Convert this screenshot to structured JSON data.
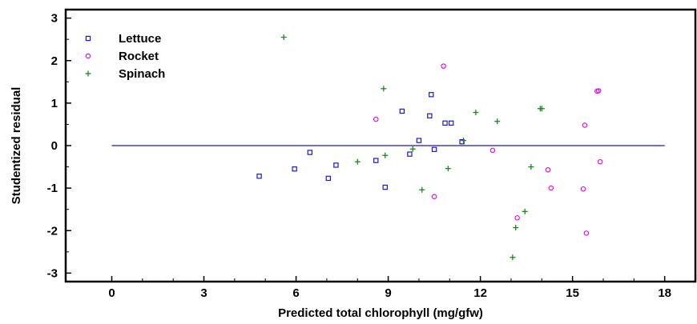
{
  "chart_data": {
    "type": "scatter",
    "title": "",
    "xlabel": "Predicted total chlorophyll (mg/gfw)",
    "ylabel": "Studentized residual",
    "xlim": [
      -1.5,
      19
    ],
    "ylim": [
      -3.2,
      3.2
    ],
    "xticks": [
      0,
      3,
      6,
      9,
      12,
      15,
      18
    ],
    "yticks": [
      -3,
      -2,
      -1,
      0,
      1,
      2,
      3
    ],
    "grid": false,
    "legend_position": "top-left",
    "reference_line": {
      "y": 0,
      "x_range": [
        0,
        18
      ],
      "color": "#1a1aa6"
    },
    "series": [
      {
        "name": "Lettuce",
        "marker": "square",
        "color": "#1a1acc",
        "points": [
          {
            "x": 4.8,
            "y": -0.72
          },
          {
            "x": 5.95,
            "y": -0.55
          },
          {
            "x": 6.45,
            "y": -0.16
          },
          {
            "x": 7.05,
            "y": -0.77
          },
          {
            "x": 7.3,
            "y": -0.46
          },
          {
            "x": 8.6,
            "y": -0.35
          },
          {
            "x": 8.9,
            "y": -0.98
          },
          {
            "x": 9.45,
            "y": 0.81
          },
          {
            "x": 9.7,
            "y": -0.2
          },
          {
            "x": 10.0,
            "y": 0.12
          },
          {
            "x": 10.35,
            "y": 0.7
          },
          {
            "x": 10.4,
            "y": 1.2
          },
          {
            "x": 10.5,
            "y": -0.09
          },
          {
            "x": 10.85,
            "y": 0.53
          },
          {
            "x": 11.05,
            "y": 0.53
          },
          {
            "x": 11.4,
            "y": 0.09
          }
        ]
      },
      {
        "name": "Rocket",
        "marker": "circle",
        "color": "#e600e6",
        "points": [
          {
            "x": 8.6,
            "y": 0.62
          },
          {
            "x": 10.5,
            "y": -1.2
          },
          {
            "x": 10.8,
            "y": 1.87
          },
          {
            "x": 12.4,
            "y": -0.11
          },
          {
            "x": 13.2,
            "y": -1.7
          },
          {
            "x": 14.2,
            "y": -0.57
          },
          {
            "x": 14.3,
            "y": -1.0
          },
          {
            "x": 15.35,
            "y": -1.02
          },
          {
            "x": 15.4,
            "y": 0.48
          },
          {
            "x": 15.45,
            "y": -2.06
          },
          {
            "x": 15.8,
            "y": 1.28
          },
          {
            "x": 15.85,
            "y": 1.29
          },
          {
            "x": 15.9,
            "y": -0.38
          }
        ]
      },
      {
        "name": "Spinach",
        "marker": "plus",
        "color": "#1a8a1a",
        "points": [
          {
            "x": 5.6,
            "y": 2.55
          },
          {
            "x": 8.0,
            "y": -0.38
          },
          {
            "x": 8.85,
            "y": 1.34
          },
          {
            "x": 8.9,
            "y": -0.23
          },
          {
            "x": 9.8,
            "y": -0.08
          },
          {
            "x": 10.1,
            "y": -1.04
          },
          {
            "x": 10.95,
            "y": -0.54
          },
          {
            "x": 11.45,
            "y": 0.12
          },
          {
            "x": 11.85,
            "y": 0.78
          },
          {
            "x": 12.55,
            "y": 0.57
          },
          {
            "x": 13.05,
            "y": -2.63
          },
          {
            "x": 13.15,
            "y": -1.93
          },
          {
            "x": 13.45,
            "y": -1.55
          },
          {
            "x": 13.65,
            "y": -0.5
          },
          {
            "x": 13.95,
            "y": 0.87
          },
          {
            "x": 14.0,
            "y": 0.87
          }
        ]
      }
    ]
  }
}
